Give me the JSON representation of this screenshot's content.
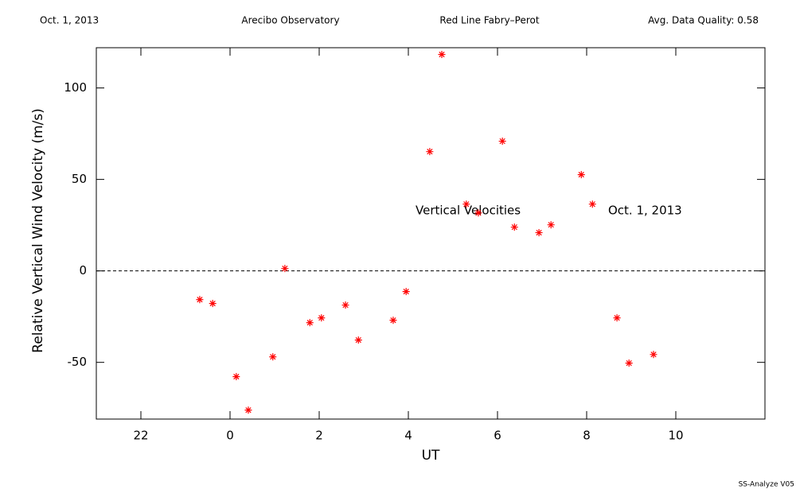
{
  "chart_data": {
    "type": "scatter",
    "header": [
      "Oct. 1, 2013",
      "Arecibo Observatory",
      "Red Line Fabry–Perot",
      "Avg. Data Quality: 0.58"
    ],
    "xlabel": "UT",
    "ylabel": "Relative Vertical Wind Velocity (m/s)",
    "annotations": [
      "Vertical Velocities",
      "Oct. 1, 2013"
    ],
    "footer": "SS-Analyze V05",
    "xlim": [
      -3,
      12
    ],
    "ylim": [
      -81,
      122
    ],
    "xticks": [
      {
        "value": -2,
        "label": "22"
      },
      0,
      2,
      4,
      6,
      8,
      10
    ],
    "yticks": [
      -50,
      0,
      50,
      100
    ],
    "hline": 0,
    "color": "#ff0000",
    "series": [
      {
        "name": "Vertical Velocities",
        "color": "#ff0000",
        "x": [
          -0.68,
          -0.39,
          0.14,
          0.41,
          0.96,
          1.23,
          1.79,
          2.05,
          2.59,
          2.88,
          3.66,
          3.95,
          4.48,
          4.75,
          5.3,
          5.57,
          6.11,
          6.38,
          6.93,
          7.2,
          7.88,
          8.13,
          8.68,
          8.95,
          9.5
        ],
        "values": [
          -15.7,
          -17.8,
          -57.8,
          -76.1,
          -47.0,
          1.3,
          -28.3,
          -25.7,
          -18.7,
          -37.8,
          -27.0,
          -11.3,
          65.2,
          118.3,
          36.5,
          31.7,
          70.9,
          23.9,
          20.9,
          25.2,
          52.6,
          36.5,
          -25.7,
          -50.4,
          -45.7
        ]
      }
    ]
  }
}
